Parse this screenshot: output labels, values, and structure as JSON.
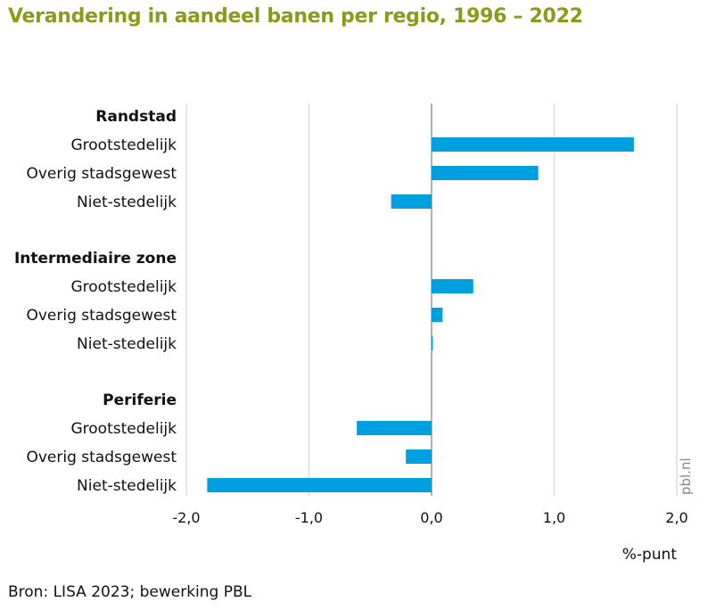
{
  "title": "Verandering in aandeel banen per regio, 1996 – 2022",
  "chart_data": {
    "type": "bar",
    "orientation": "horizontal",
    "groups": [
      {
        "name": "Randstad",
        "categories": [
          "Grootstedelijk",
          "Overig stadsgewest",
          "Niet-stedelijk"
        ],
        "values": [
          1.65,
          0.87,
          -0.33
        ]
      },
      {
        "name": "Intermediaire zone",
        "categories": [
          "Grootstedelijk",
          "Overig stadsgewest",
          "Niet-stedelijk"
        ],
        "values": [
          0.34,
          0.09,
          0.01
        ]
      },
      {
        "name": "Periferie",
        "categories": [
          "Grootstedelijk",
          "Overig stadsgewest",
          "Niet-stedelijk"
        ],
        "values": [
          -0.61,
          -0.21,
          -1.83
        ]
      }
    ],
    "xlim": [
      -2.0,
      2.0
    ],
    "xticks": [
      "-2,0",
      "-1,0",
      "0,0",
      "1,0",
      "2,0"
    ],
    "xlabel": "%-punt",
    "grid": true,
    "color": "#009fe0"
  },
  "source": "Bron: LISA 2023; bewerking PBL",
  "watermark": "pbl.nl"
}
